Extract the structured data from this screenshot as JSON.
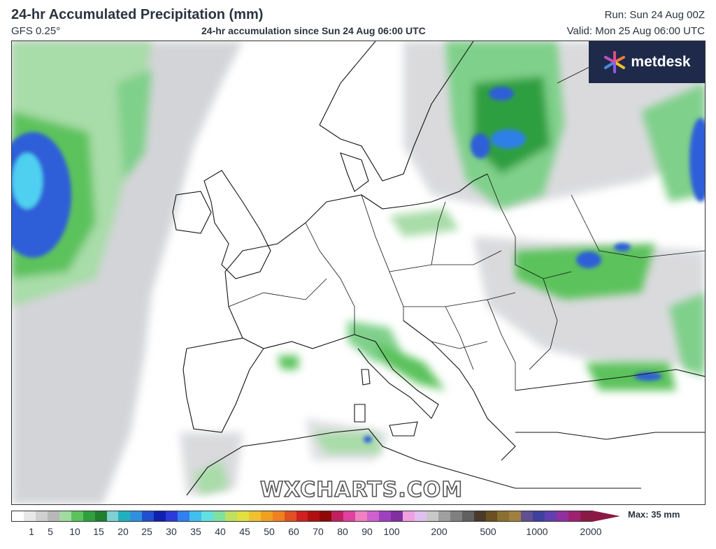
{
  "header": {
    "title": "24-hr Accumulated Precipitation (mm)",
    "model": "GFS 0.25°",
    "subtitle": "24-hr accumulation since Sun 24 Aug 06:00 UTC",
    "run": "Run: Sun 24 Aug 00Z",
    "valid": "Valid: Mon 25 Aug 06:00 UTC"
  },
  "logo": {
    "text": "metdesk",
    "icon": "metdesk-star-icon"
  },
  "watermark": "WXCHARTS.COM",
  "colors": {
    "land": "#ffffff",
    "light_precip": "#cfd0d4",
    "green_light": "#a8dca8",
    "green": "#5cc25c",
    "green_dark": "#1f8f3a",
    "blue": "#2f5fd8",
    "cyan": "#4fd0f0"
  },
  "legend": {
    "max_label": "Max: 35 mm",
    "tick_labels": [
      "1",
      "5",
      "10",
      "15",
      "20",
      "25",
      "30",
      "35",
      "40",
      "45",
      "50",
      "60",
      "70",
      "80",
      "90",
      "100",
      "200",
      "500",
      "1000",
      "2000"
    ],
    "colors": [
      "#ffffff",
      "#e8e8e8",
      "#d0d0d0",
      "#b8b8b8",
      "#a0dca0",
      "#5cc25c",
      "#2f9f3f",
      "#1f7f2f",
      "#7fd0d0",
      "#20b0c0",
      "#3090e0",
      "#2050d0",
      "#1020b0",
      "#2b3ad8",
      "#2f80f0",
      "#40c0f0",
      "#60e0e0",
      "#80e0a0",
      "#c0e060",
      "#e0e040",
      "#f0c030",
      "#f0a020",
      "#f08020",
      "#e05020",
      "#d02020",
      "#b01010",
      "#900808",
      "#c02060",
      "#e040a0",
      "#f080c0",
      "#d060d0",
      "#a040c0",
      "#8030a0",
      "#f0a0e0",
      "#e0c0f0",
      "#c8c8c8",
      "#a0a0a0",
      "#808080",
      "#606060",
      "#4a3a2a",
      "#6a5020",
      "#8a7030",
      "#a08040",
      "#605090",
      "#4040a0",
      "#6040b0",
      "#9030a0",
      "#a02070",
      "#8a1a45"
    ]
  }
}
